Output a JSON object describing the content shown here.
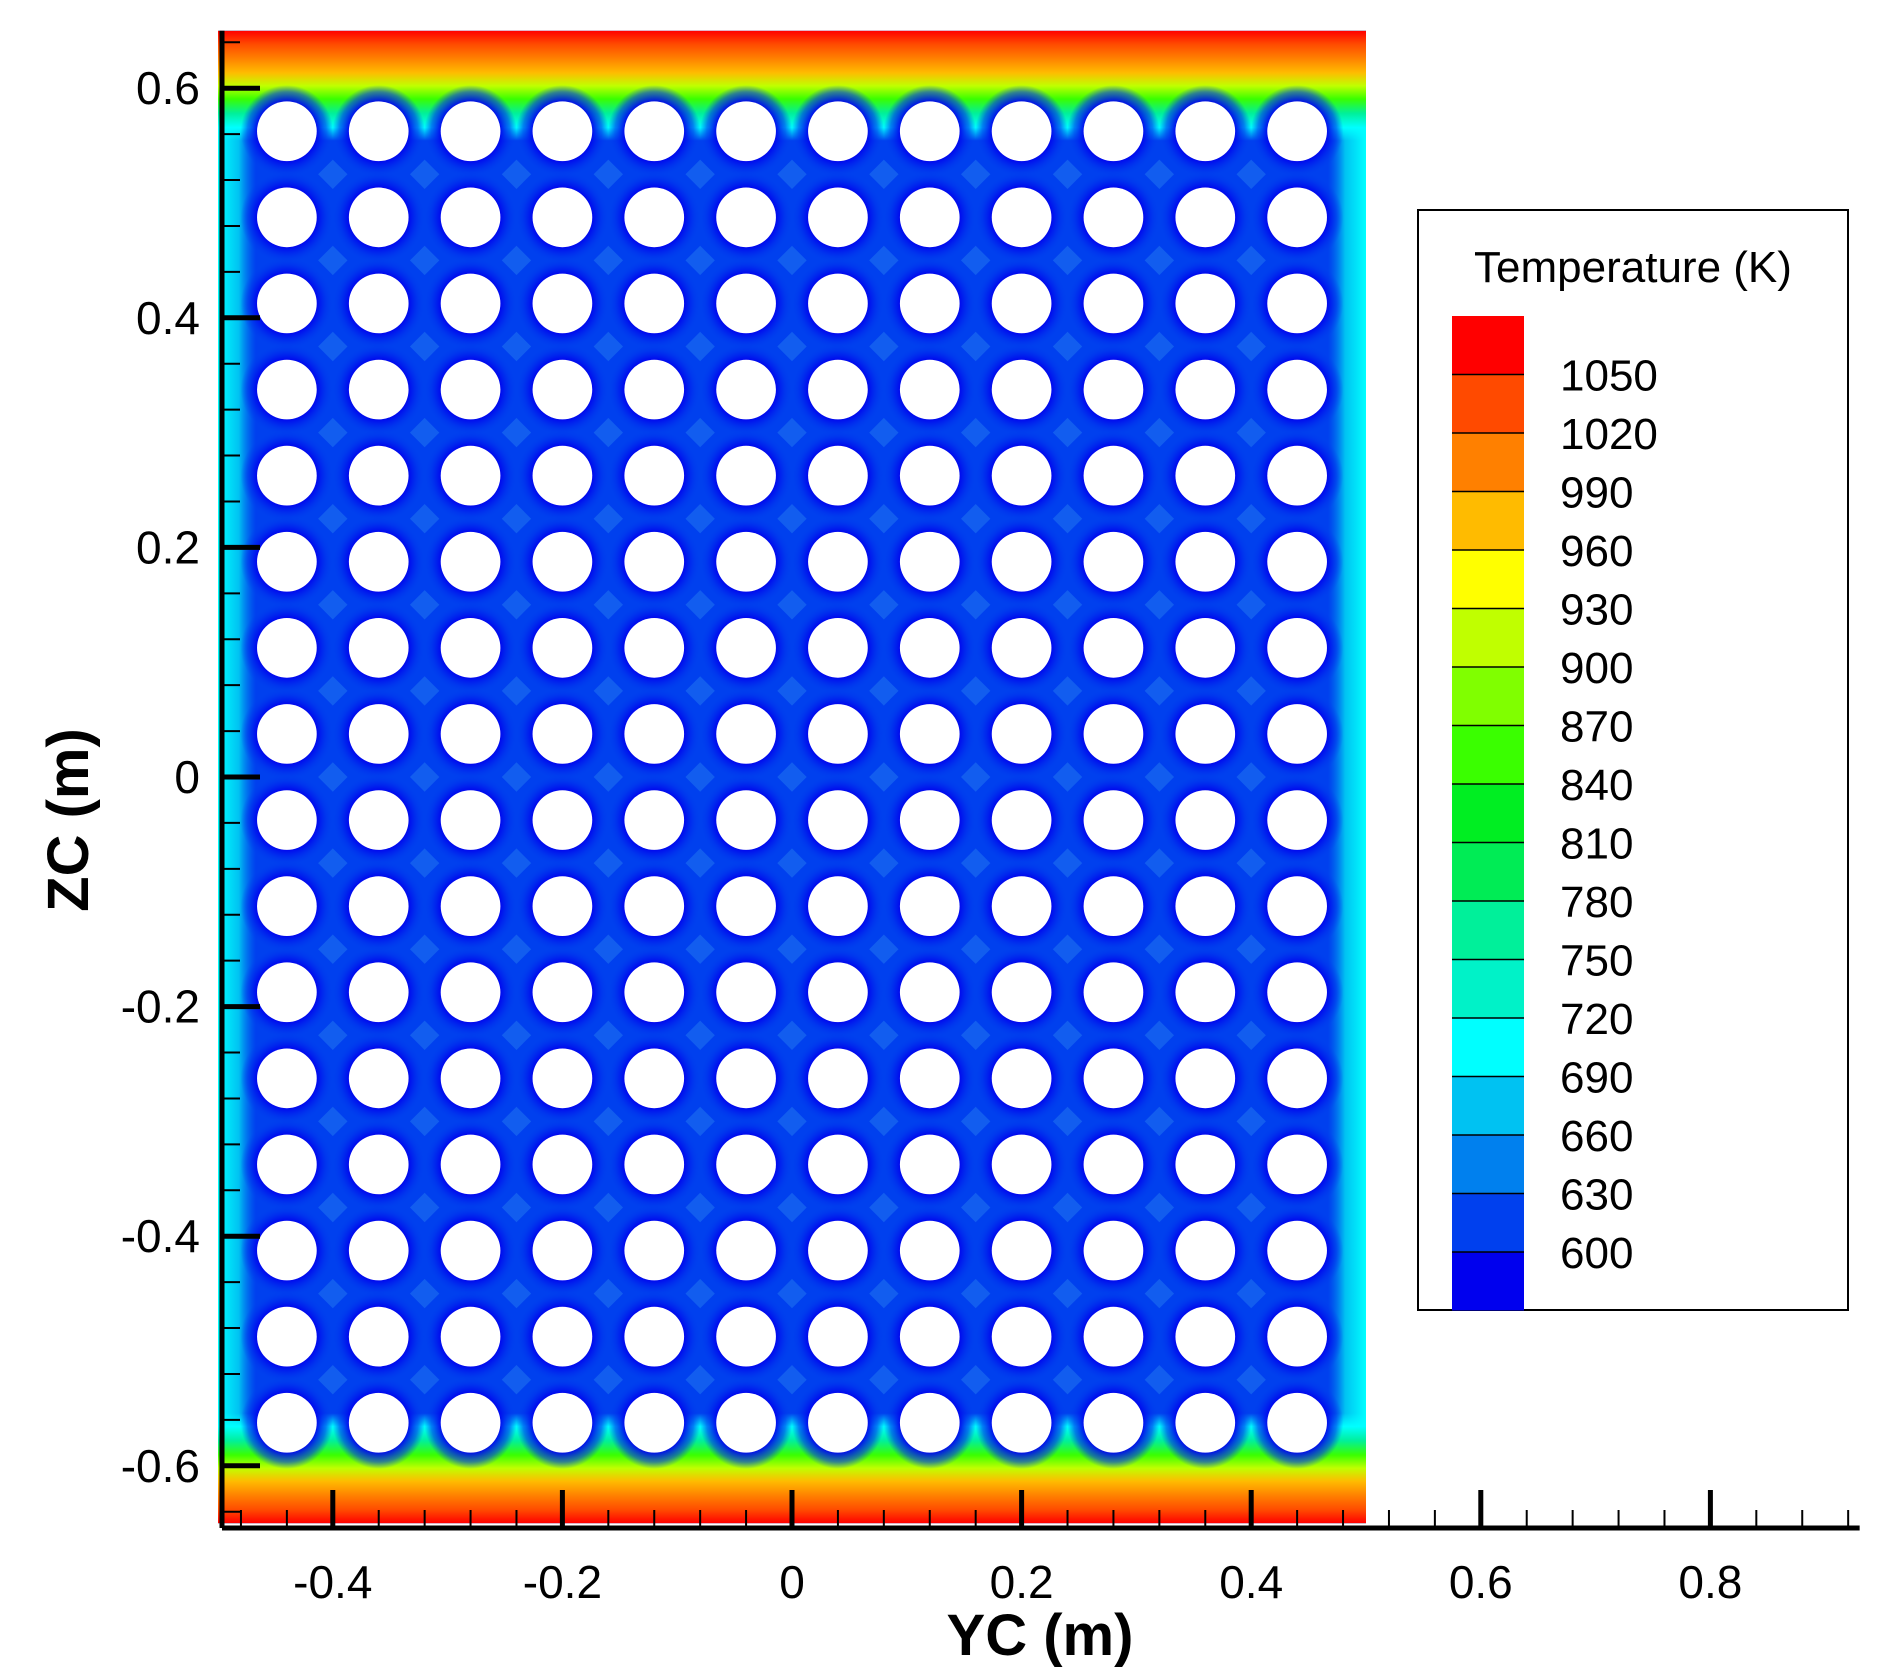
{
  "chart_data": {
    "type": "heatmap",
    "xlabel": "YC (m)",
    "ylabel": "ZC (m)",
    "x_ticks": [
      "-0.4",
      "-0.2",
      "0",
      "0.2",
      "0.4",
      "0.6",
      "0.8"
    ],
    "x_tick_values": [
      -0.4,
      -0.2,
      0,
      0.2,
      0.4,
      0.6,
      0.8
    ],
    "y_ticks": [
      "0.6",
      "0.4",
      "0.2",
      "0",
      "-0.2",
      "-0.4",
      "-0.6"
    ],
    "y_tick_values": [
      0.6,
      0.4,
      0.2,
      0,
      -0.2,
      -0.4,
      -0.6
    ],
    "xlim": [
      -0.5,
      0.93
    ],
    "ylim": [
      -0.65,
      0.65
    ],
    "domain_y": [
      -0.5,
      0.5
    ],
    "domain_z": [
      -0.65,
      0.65
    ],
    "holes": {
      "columns": 12,
      "rows": 16,
      "y_centers": [
        -0.44,
        -0.36,
        -0.28,
        -0.2,
        -0.12,
        -0.04,
        0.04,
        0.12,
        0.2,
        0.28,
        0.36,
        0.44
      ],
      "z_centers": [
        0.5625,
        0.4875,
        0.4125,
        0.3375,
        0.2625,
        0.1875,
        0.1125,
        0.0375,
        -0.0375,
        -0.1125,
        -0.1875,
        -0.2625,
        -0.3375,
        -0.4125,
        -0.4875,
        -0.5625
      ],
      "radius": 0.026
    },
    "legend": {
      "title": "Temperature (K)",
      "position": "right",
      "levels": [
        "1050",
        "1020",
        "990",
        "960",
        "930",
        "900",
        "870",
        "840",
        "810",
        "780",
        "750",
        "720",
        "690",
        "660",
        "630",
        "600"
      ],
      "level_values": [
        1050,
        1020,
        990,
        960,
        930,
        900,
        870,
        840,
        810,
        780,
        750,
        720,
        690,
        660,
        630,
        600
      ],
      "colors": [
        "#ff0000",
        "#ff4a00",
        "#ff8000",
        "#ffbb00",
        "#ffff00",
        "#c0ff00",
        "#80ff00",
        "#3aff00",
        "#00ee22",
        "#00ec55",
        "#00f09a",
        "#00f2c8",
        "#00ffff",
        "#00c2f2",
        "#0080ee",
        "#0040ee",
        "#0000ee"
      ]
    },
    "field": {
      "background_temperature": 615,
      "side_wall_temperature": 700,
      "top_bottom_wall_temperature": 1060
    }
  }
}
